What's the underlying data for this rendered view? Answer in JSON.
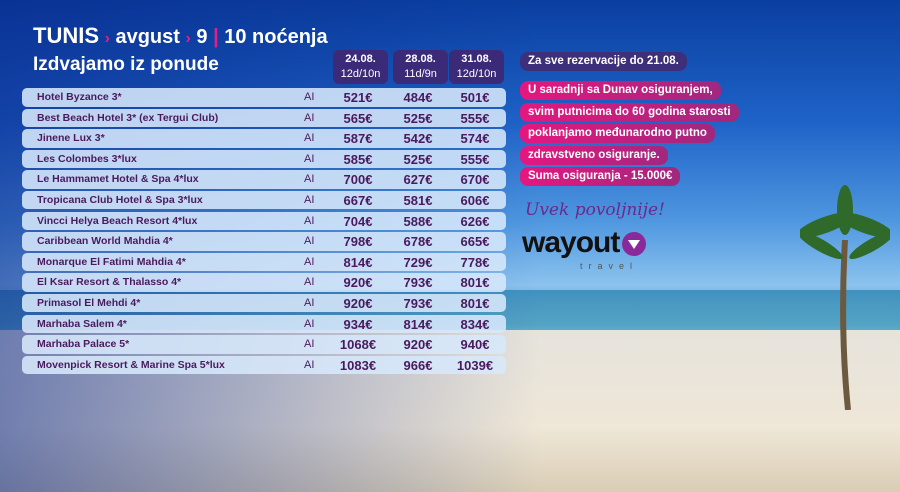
{
  "header": {
    "destination": "TUNIS",
    "month": "avgust",
    "nights": "9",
    "nights2": "10 noćenja",
    "subtitle": "Izdvajamo iz ponude"
  },
  "dates": [
    {
      "date": "24.08.",
      "duration": "12d/10n"
    },
    {
      "date": "28.08.",
      "duration": "11d/9n"
    },
    {
      "date": "31.08.",
      "duration": "12d/10n"
    }
  ],
  "hotels": [
    {
      "name": "Hotel Byzance 3*",
      "board": "AI",
      "prices": [
        "521€",
        "484€",
        "501€"
      ]
    },
    {
      "name": "Best Beach Hotel 3* (ex Tergui Club)",
      "board": "AI",
      "prices": [
        "565€",
        "525€",
        "555€"
      ]
    },
    {
      "name": "Jinene Lux 3*",
      "board": "AI",
      "prices": [
        "587€",
        "542€",
        "574€"
      ]
    },
    {
      "name": "Les Colombes 3*lux",
      "board": "AI",
      "prices": [
        "585€",
        "525€",
        "555€"
      ]
    },
    {
      "name": "Le Hammamet Hotel & Spa 4*lux",
      "board": "AI",
      "prices": [
        "700€",
        "627€",
        "670€"
      ]
    },
    {
      "name": "Tropicana Club Hotel & Spa 3*lux",
      "board": "AI",
      "prices": [
        "667€",
        "581€",
        "606€"
      ]
    },
    {
      "name": "Vincci Helya Beach Resort 4*lux",
      "board": "AI",
      "prices": [
        "704€",
        "588€",
        "626€"
      ]
    },
    {
      "name": "Caribbean World Mahdia 4*",
      "board": "AI",
      "prices": [
        "798€",
        "678€",
        "665€"
      ]
    },
    {
      "name": "Monarque El Fatimi Mahdia 4*",
      "board": "AI",
      "prices": [
        "814€",
        "729€",
        "778€"
      ]
    },
    {
      "name": "El Ksar Resort & Thalasso 4*",
      "board": "AI",
      "prices": [
        "920€",
        "793€",
        "801€"
      ]
    },
    {
      "name": "Primasol El Mehdi 4*",
      "board": "AI",
      "prices": [
        "920€",
        "793€",
        "801€"
      ]
    },
    {
      "name": "Marhaba Salem 4*",
      "board": "AI",
      "prices": [
        "934€",
        "814€",
        "834€"
      ]
    },
    {
      "name": "Marhaba Palace 5*",
      "board": "AI",
      "prices": [
        "1068€",
        "920€",
        "940€"
      ]
    },
    {
      "name": "Movenpick Resort & Marine Spa 5*lux",
      "board": "AI",
      "prices": [
        "1083€",
        "966€",
        "1039€"
      ]
    }
  ],
  "promo": {
    "deadline": "Za sve rezervacije do 21.08.",
    "lines": [
      "U saradnji sa Dunav osiguranjem,",
      "svim putnicima do 60 godina starosti",
      "poklanjamo međunarodno putno",
      "zdravstveno osiguranje.",
      "Suma osiguranja - 15.000€"
    ]
  },
  "brand": {
    "slogan": "Uvek povoljnije!",
    "logo": "wayout",
    "logo_sub": "travel"
  },
  "colors": {
    "accent": "#e4177f",
    "date_header": "#3a2a78",
    "text": "#4a1a5e"
  }
}
